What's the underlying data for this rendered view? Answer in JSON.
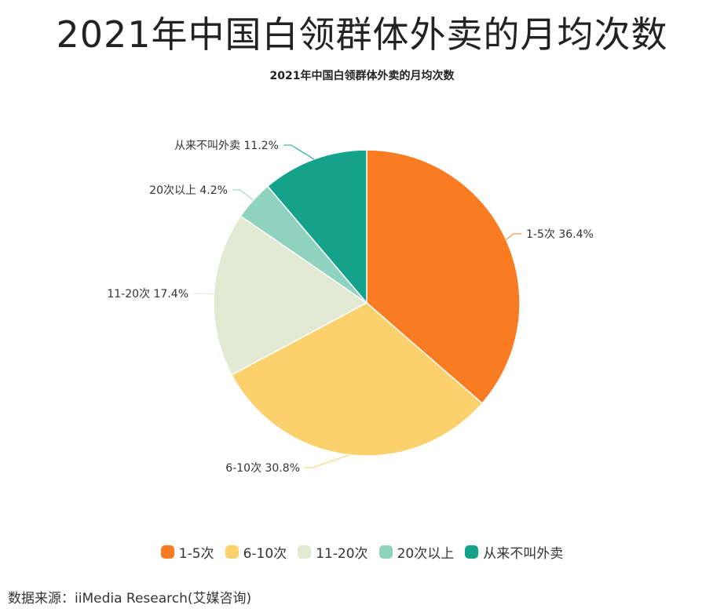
{
  "page_title": "2021年中国白领群体外卖的月均次数",
  "source": "数据来源：iiMedia Research(艾媒咨询)",
  "chart_data": {
    "type": "pie",
    "title": "2021年中国白领群体外卖的月均次数",
    "slices": [
      {
        "label": "1-5次",
        "value": 36.4,
        "value_label": "36.4%",
        "color": "#F97B22"
      },
      {
        "label": "6-10次",
        "value": 30.8,
        "value_label": "30.8%",
        "color": "#FAD16C"
      },
      {
        "label": "11-20次",
        "value": 17.4,
        "value_label": "17.4%",
        "color": "#E1E9D2"
      },
      {
        "label": "20次以上",
        "value": 4.2,
        "value_label": "4.2%",
        "color": "#8FD3BE"
      },
      {
        "label": "从来不叫外卖",
        "value": 11.2,
        "value_label": "11.2%",
        "color": "#14A38A"
      }
    ],
    "start": "12 o'clock",
    "direction": "clockwise",
    "legend_position": "bottom"
  }
}
